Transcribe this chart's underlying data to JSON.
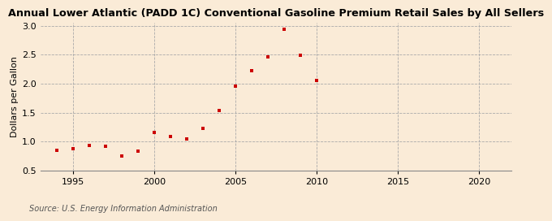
{
  "title": "Annual Lower Atlantic (PADD 1C) Conventional Gasoline Premium Retail Sales by All Sellers",
  "ylabel": "Dollars per Gallon",
  "source": "Source: U.S. Energy Information Administration",
  "background_color": "#faebd7",
  "marker_color": "#cc0000",
  "xlim": [
    1993,
    2022
  ],
  "ylim": [
    0.5,
    3.05
  ],
  "xticks": [
    1995,
    2000,
    2005,
    2010,
    2015,
    2020
  ],
  "yticks": [
    0.5,
    1.0,
    1.5,
    2.0,
    2.5,
    3.0
  ],
  "years": [
    1994,
    1995,
    1996,
    1997,
    1998,
    1999,
    2000,
    2001,
    2002,
    2003,
    2004,
    2005,
    2006,
    2007,
    2008,
    2009,
    2010
  ],
  "values": [
    0.85,
    0.88,
    0.93,
    0.92,
    0.75,
    0.83,
    1.16,
    1.09,
    1.05,
    1.23,
    1.54,
    1.96,
    2.22,
    2.46,
    2.94,
    2.49,
    2.05
  ]
}
